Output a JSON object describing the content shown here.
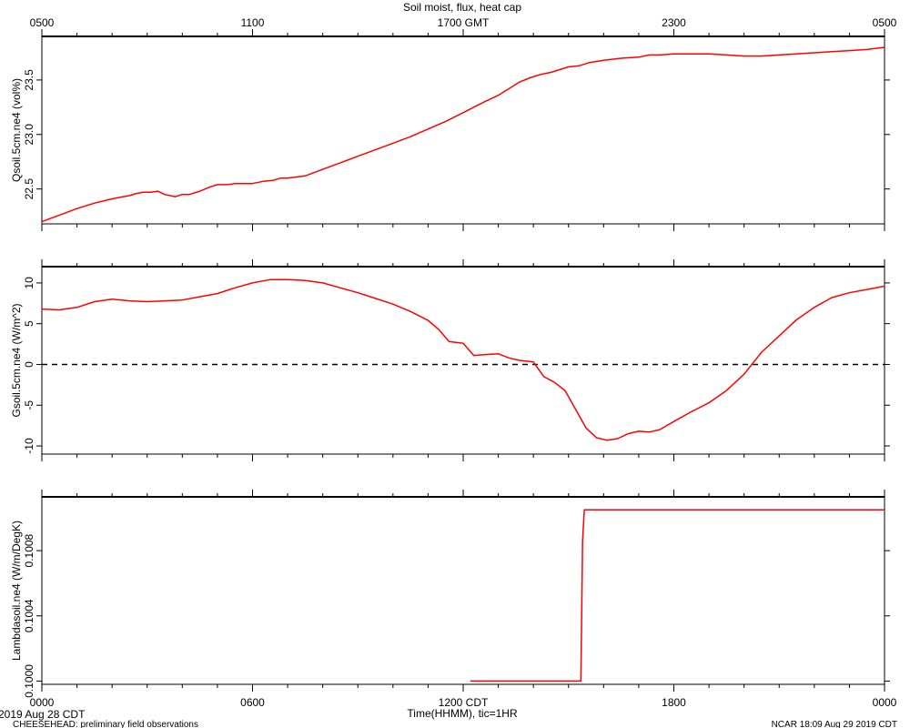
{
  "header": {
    "title": "Soil moist, flux, heat cap",
    "top_axis_ticks": [
      "0500",
      "1100",
      "1700 GMT",
      "2300",
      "0500"
    ],
    "date_label": "2019 Aug 28 CDT",
    "project_label": "CHEESEHEAD: preliminary field observations",
    "credit_label": "NCAR 18:09 Aug 29 2019 CDT",
    "xlabel": "Time(HHMM), tic=1HR"
  },
  "colors": {
    "series": "#ff0000",
    "axes": "#000000",
    "zero_line": "#000000"
  },
  "chart_data": [
    {
      "type": "line",
      "ylabel": "Qsoil.5cm.ne4 (vol%)",
      "ylim": [
        22.18,
        23.9
      ],
      "yticks": [
        22.5,
        23.0,
        23.5
      ],
      "yticklabels": [
        "22.5",
        "23.0",
        "23.5"
      ],
      "x_range_hours": [
        0,
        24
      ],
      "series": [
        {
          "x": [
            0,
            0.5,
            1,
            1.5,
            2,
            2.5,
            2.7,
            2.9,
            3.1,
            3.3,
            3.5,
            3.8,
            4.0,
            4.2,
            4.5,
            4.8,
            5.0,
            5.3,
            5.5,
            5.8,
            6.0,
            6.3,
            6.6,
            6.8,
            7.0,
            7.5,
            8.0,
            8.5,
            9.0,
            9.5,
            10.0,
            10.5,
            11.0,
            11.5,
            12.0,
            12.3,
            12.6,
            12.8,
            13.0,
            13.3,
            13.6,
            13.9,
            14.2,
            14.5,
            14.8,
            15.0,
            15.3,
            15.6,
            16.0,
            16.5,
            17.0,
            17.3,
            17.6,
            18.0,
            18.5,
            19.0,
            19.5,
            20.0,
            20.5,
            21.0,
            21.5,
            22.0,
            22.5,
            23.0,
            23.5,
            24.0
          ],
          "y": [
            22.2,
            22.26,
            22.32,
            22.37,
            22.41,
            22.44,
            22.46,
            22.47,
            22.47,
            22.48,
            22.45,
            22.43,
            22.45,
            22.45,
            22.48,
            22.52,
            22.54,
            22.54,
            22.55,
            22.55,
            22.55,
            22.57,
            22.58,
            22.6,
            22.6,
            22.62,
            22.68,
            22.74,
            22.8,
            22.86,
            22.92,
            22.98,
            23.05,
            23.12,
            23.2,
            23.25,
            23.3,
            23.33,
            23.36,
            23.42,
            23.48,
            23.52,
            23.55,
            23.57,
            23.6,
            23.62,
            23.63,
            23.66,
            23.68,
            23.7,
            23.71,
            23.73,
            23.73,
            23.74,
            23.74,
            23.74,
            23.73,
            23.72,
            23.72,
            23.73,
            23.74,
            23.75,
            23.76,
            23.77,
            23.78,
            23.8
          ]
        }
      ]
    },
    {
      "type": "line",
      "ylabel": "Gsoil.5cm.ne4 (W/m^2)",
      "ylim": [
        -11,
        12
      ],
      "yticks": [
        -10,
        -5,
        0,
        5,
        10
      ],
      "yticklabels": [
        "-10",
        "-5",
        "0",
        "5",
        "10"
      ],
      "zero_line": true,
      "x_range_hours": [
        0,
        24
      ],
      "series": [
        {
          "x": [
            0,
            0.5,
            1,
            1.5,
            2,
            2.5,
            3,
            3.5,
            4,
            4.5,
            5,
            5.5,
            6,
            6.5,
            7,
            7.5,
            8,
            8.5,
            9,
            9.5,
            10,
            10.5,
            11,
            11.3,
            11.6,
            12.0,
            12.3,
            12.6,
            13.0,
            13.3,
            13.6,
            14.0,
            14.3,
            14.6,
            14.9,
            15.2,
            15.5,
            15.8,
            16.1,
            16.4,
            16.7,
            17.0,
            17.3,
            17.6,
            18.0,
            18.5,
            19.0,
            19.5,
            20.0,
            20.5,
            21.0,
            21.5,
            22.0,
            22.5,
            23.0,
            23.5,
            24.0
          ],
          "y": [
            6.8,
            6.7,
            7.0,
            7.7,
            8.0,
            7.8,
            7.7,
            7.8,
            7.9,
            8.3,
            8.7,
            9.4,
            10.0,
            10.4,
            10.4,
            10.3,
            10.0,
            9.4,
            8.8,
            8.1,
            7.4,
            6.5,
            5.4,
            4.3,
            2.8,
            2.6,
            1.1,
            1.2,
            1.3,
            0.8,
            0.5,
            0.3,
            -1.5,
            -2.2,
            -3.2,
            -5.5,
            -7.8,
            -9.0,
            -9.3,
            -9.1,
            -8.5,
            -8.2,
            -8.3,
            -8.0,
            -7.0,
            -5.8,
            -4.7,
            -3.2,
            -1.2,
            1.5,
            3.5,
            5.5,
            7.0,
            8.2,
            8.8,
            9.2,
            9.6
          ]
        }
      ]
    },
    {
      "type": "line",
      "ylabel": "Lambdasoil.ne4 (W/m/DegK)",
      "ylim": [
        0.09998,
        0.10113
      ],
      "yticks": [
        0.1,
        0.1004,
        0.1008
      ],
      "yticklabels": [
        "0.1000",
        "0.1004",
        "0.1008"
      ],
      "x_range_hours": [
        0,
        24
      ],
      "series": [
        {
          "x": [
            12.2,
            15.35,
            15.4,
            15.45,
            24.0
          ],
          "y": [
            0.1,
            0.1,
            0.10086,
            0.10105,
            0.10105
          ]
        }
      ]
    }
  ],
  "x_axis": {
    "ticks_hours": [
      0,
      6,
      12,
      18,
      24
    ],
    "ticklabels": [
      "0000",
      "0600",
      "1200 CDT",
      "1800",
      "0000"
    ],
    "minor_ticks_per_hour": 1
  }
}
